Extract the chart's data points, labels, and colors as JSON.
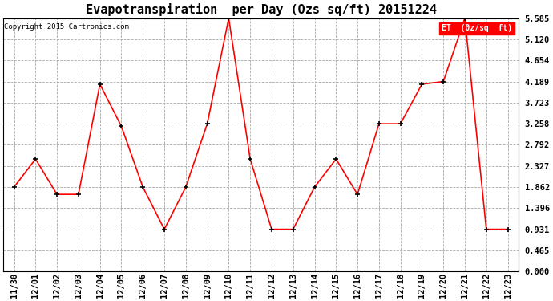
{
  "title": "Evapotranspiration  per Day (Ozs sq/ft) 20151224",
  "copyright": "Copyright 2015 Cartronics.com",
  "legend_label": "ET  (0z/sq  ft)",
  "dates": [
    "11/30",
    "12/01",
    "12/02",
    "12/03",
    "12/04",
    "12/05",
    "12/06",
    "12/07",
    "12/08",
    "12/09",
    "12/10",
    "12/11",
    "12/12",
    "12/13",
    "12/14",
    "12/15",
    "12/16",
    "12/17",
    "12/18",
    "12/19",
    "12/20",
    "12/21",
    "12/22",
    "12/23"
  ],
  "values": [
    1.862,
    2.48,
    1.7,
    1.7,
    4.13,
    3.2,
    1.862,
    0.931,
    1.862,
    3.258,
    5.585,
    2.48,
    0.931,
    0.931,
    1.862,
    2.48,
    1.7,
    3.258,
    3.258,
    4.13,
    4.189,
    5.585,
    0.931,
    0.931
  ],
  "line_color": "red",
  "marker_color": "black",
  "bg_color": "white",
  "grid_color": "#aaaaaa",
  "yticks": [
    0.0,
    0.465,
    0.931,
    1.396,
    1.862,
    2.327,
    2.792,
    3.258,
    3.723,
    4.189,
    4.654,
    5.12,
    5.585
  ],
  "ylim": [
    0.0,
    5.585
  ],
  "title_fontsize": 11,
  "tick_fontsize": 7.5,
  "copyright_fontsize": 6.5,
  "legend_fontsize": 7,
  "legend_bg": "red",
  "legend_text_color": "white"
}
